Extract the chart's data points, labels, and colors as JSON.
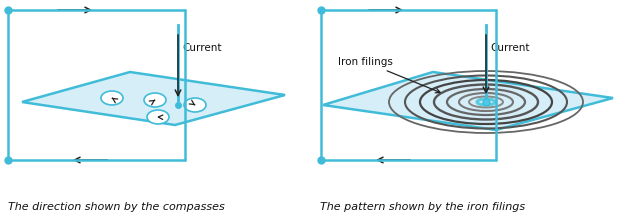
{
  "bg_color": "#ffffff",
  "wire_color": "#40bcd8",
  "plane_fill": "#d6eef8",
  "plane_edge": "#40bcd8",
  "plane_fill_R": "#d6eef8",
  "compass_fill": "#ffffff",
  "compass_edge": "#40bcd8",
  "arrow_color": "#222222",
  "conductor_color": "#40bcd8",
  "text_color": "#111111",
  "caption_color": "#111111",
  "caption1": "The direction shown by the compasses",
  "caption2": "The pattern shown by the iron filings",
  "label_current1": "Current",
  "label_current2": "Current",
  "label_iron": "Iron filings",
  "fig_width": 6.25,
  "fig_height": 2.2,
  "dpi": 100,
  "lw_wire": 1.8,
  "lw_plane": 1.8
}
